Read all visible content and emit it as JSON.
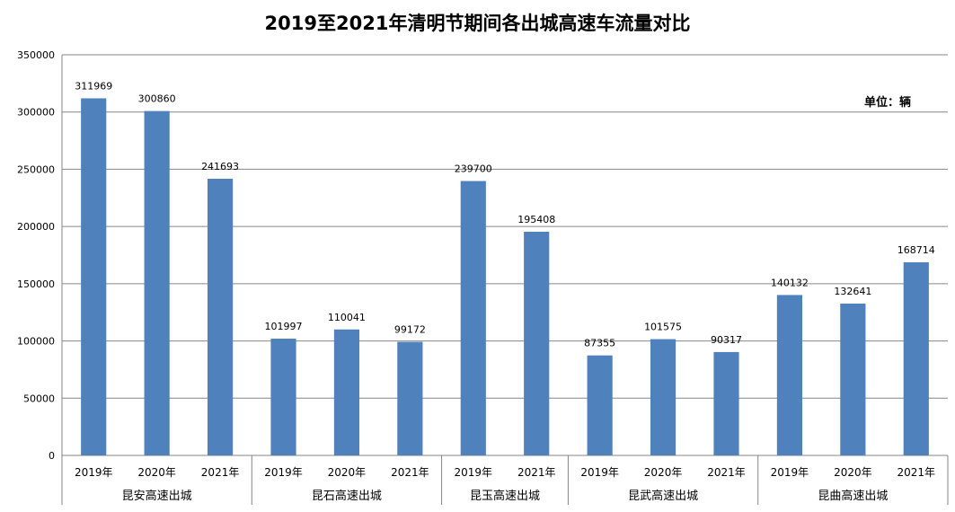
{
  "chart_data": {
    "type": "bar",
    "title": "2019至2021年清明节期间各出城高速车流量对比",
    "unit_label": "单位：辆",
    "ylim": [
      0,
      350000
    ],
    "yticks": [
      "0",
      "50000",
      "100000",
      "150000",
      "200000",
      "250000",
      "300000",
      "350000"
    ],
    "grid": true,
    "bar_color": "#4f81bd",
    "groups": [
      {
        "name": "昆安高速出城",
        "categories": [
          "2019年",
          "2020年",
          "2021年"
        ],
        "values": [
          311969,
          300860,
          241693
        ]
      },
      {
        "name": "昆石高速出城",
        "categories": [
          "2019年",
          "2020年",
          "2021年"
        ],
        "values": [
          101997,
          110041,
          99172
        ]
      },
      {
        "name": "昆玉高速出城",
        "categories": [
          "2019年",
          "2021年"
        ],
        "values": [
          239700,
          195408
        ]
      },
      {
        "name": "昆武高速出城",
        "categories": [
          "2019年",
          "2020年",
          "2021年"
        ],
        "values": [
          87355,
          101575,
          90317
        ]
      },
      {
        "name": "昆曲高速出城",
        "categories": [
          "2019年",
          "2020年",
          "2021年"
        ],
        "values": [
          140132,
          132641,
          168714
        ]
      }
    ]
  }
}
